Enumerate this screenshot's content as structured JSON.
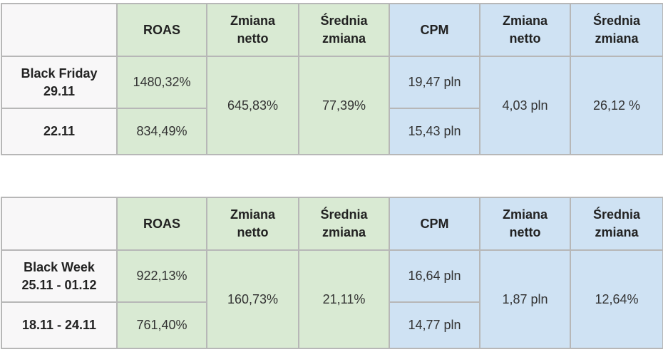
{
  "colors": {
    "label_bg": "#f8f7f8",
    "roas_bg": "#d9ead3",
    "cpm_bg": "#cfe2f3",
    "border": "#b7b7b7"
  },
  "tables": [
    {
      "headers": [
        "",
        "ROAS",
        "Zmiana netto",
        "Średnia zmiana",
        "CPM",
        "Zmiana netto",
        "Średnia zmiana"
      ],
      "header_lines": [
        [],
        [
          "ROAS"
        ],
        [
          "Zmiana",
          "netto"
        ],
        [
          "Średnia",
          "zmiana"
        ],
        [
          "CPM"
        ],
        [
          "Zmiana",
          "netto"
        ],
        [
          "Średnia",
          "zmiana"
        ]
      ],
      "rows": [
        {
          "label_lines": [
            "Black Friday",
            "29.11"
          ],
          "roas": "1480,32%",
          "cpm": "19,47 pln"
        },
        {
          "label_lines": [
            "22.11"
          ],
          "roas": "834,49%",
          "cpm": "15,43 pln"
        }
      ],
      "roas_net_change": "645,83%",
      "roas_avg_change": "77,39%",
      "cpm_net_change": "4,03 pln",
      "cpm_avg_change": "26,12 %"
    },
    {
      "headers": [
        "",
        "ROAS",
        "Zmiana netto",
        "Średnia zmiana",
        "CPM",
        "Zmiana netto",
        "Średnia zmiana"
      ],
      "header_lines": [
        [],
        [
          "ROAS"
        ],
        [
          "Zmiana",
          "netto"
        ],
        [
          "Średnia",
          "zmiana"
        ],
        [
          "CPM"
        ],
        [
          "Zmiana",
          "netto"
        ],
        [
          "Średnia",
          "zmiana"
        ]
      ],
      "rows": [
        {
          "label_lines": [
            "Black Week",
            "25.11 - 01.12"
          ],
          "roas": "922,13%",
          "cpm": "16,64 pln"
        },
        {
          "label_lines": [
            "18.11 - 24.11"
          ],
          "roas": "761,40%",
          "cpm": "14,77 pln"
        }
      ],
      "roas_net_change": "160,73%",
      "roas_avg_change": "21,11%",
      "cpm_net_change": "1,87 pln",
      "cpm_avg_change": "12,64%"
    }
  ]
}
